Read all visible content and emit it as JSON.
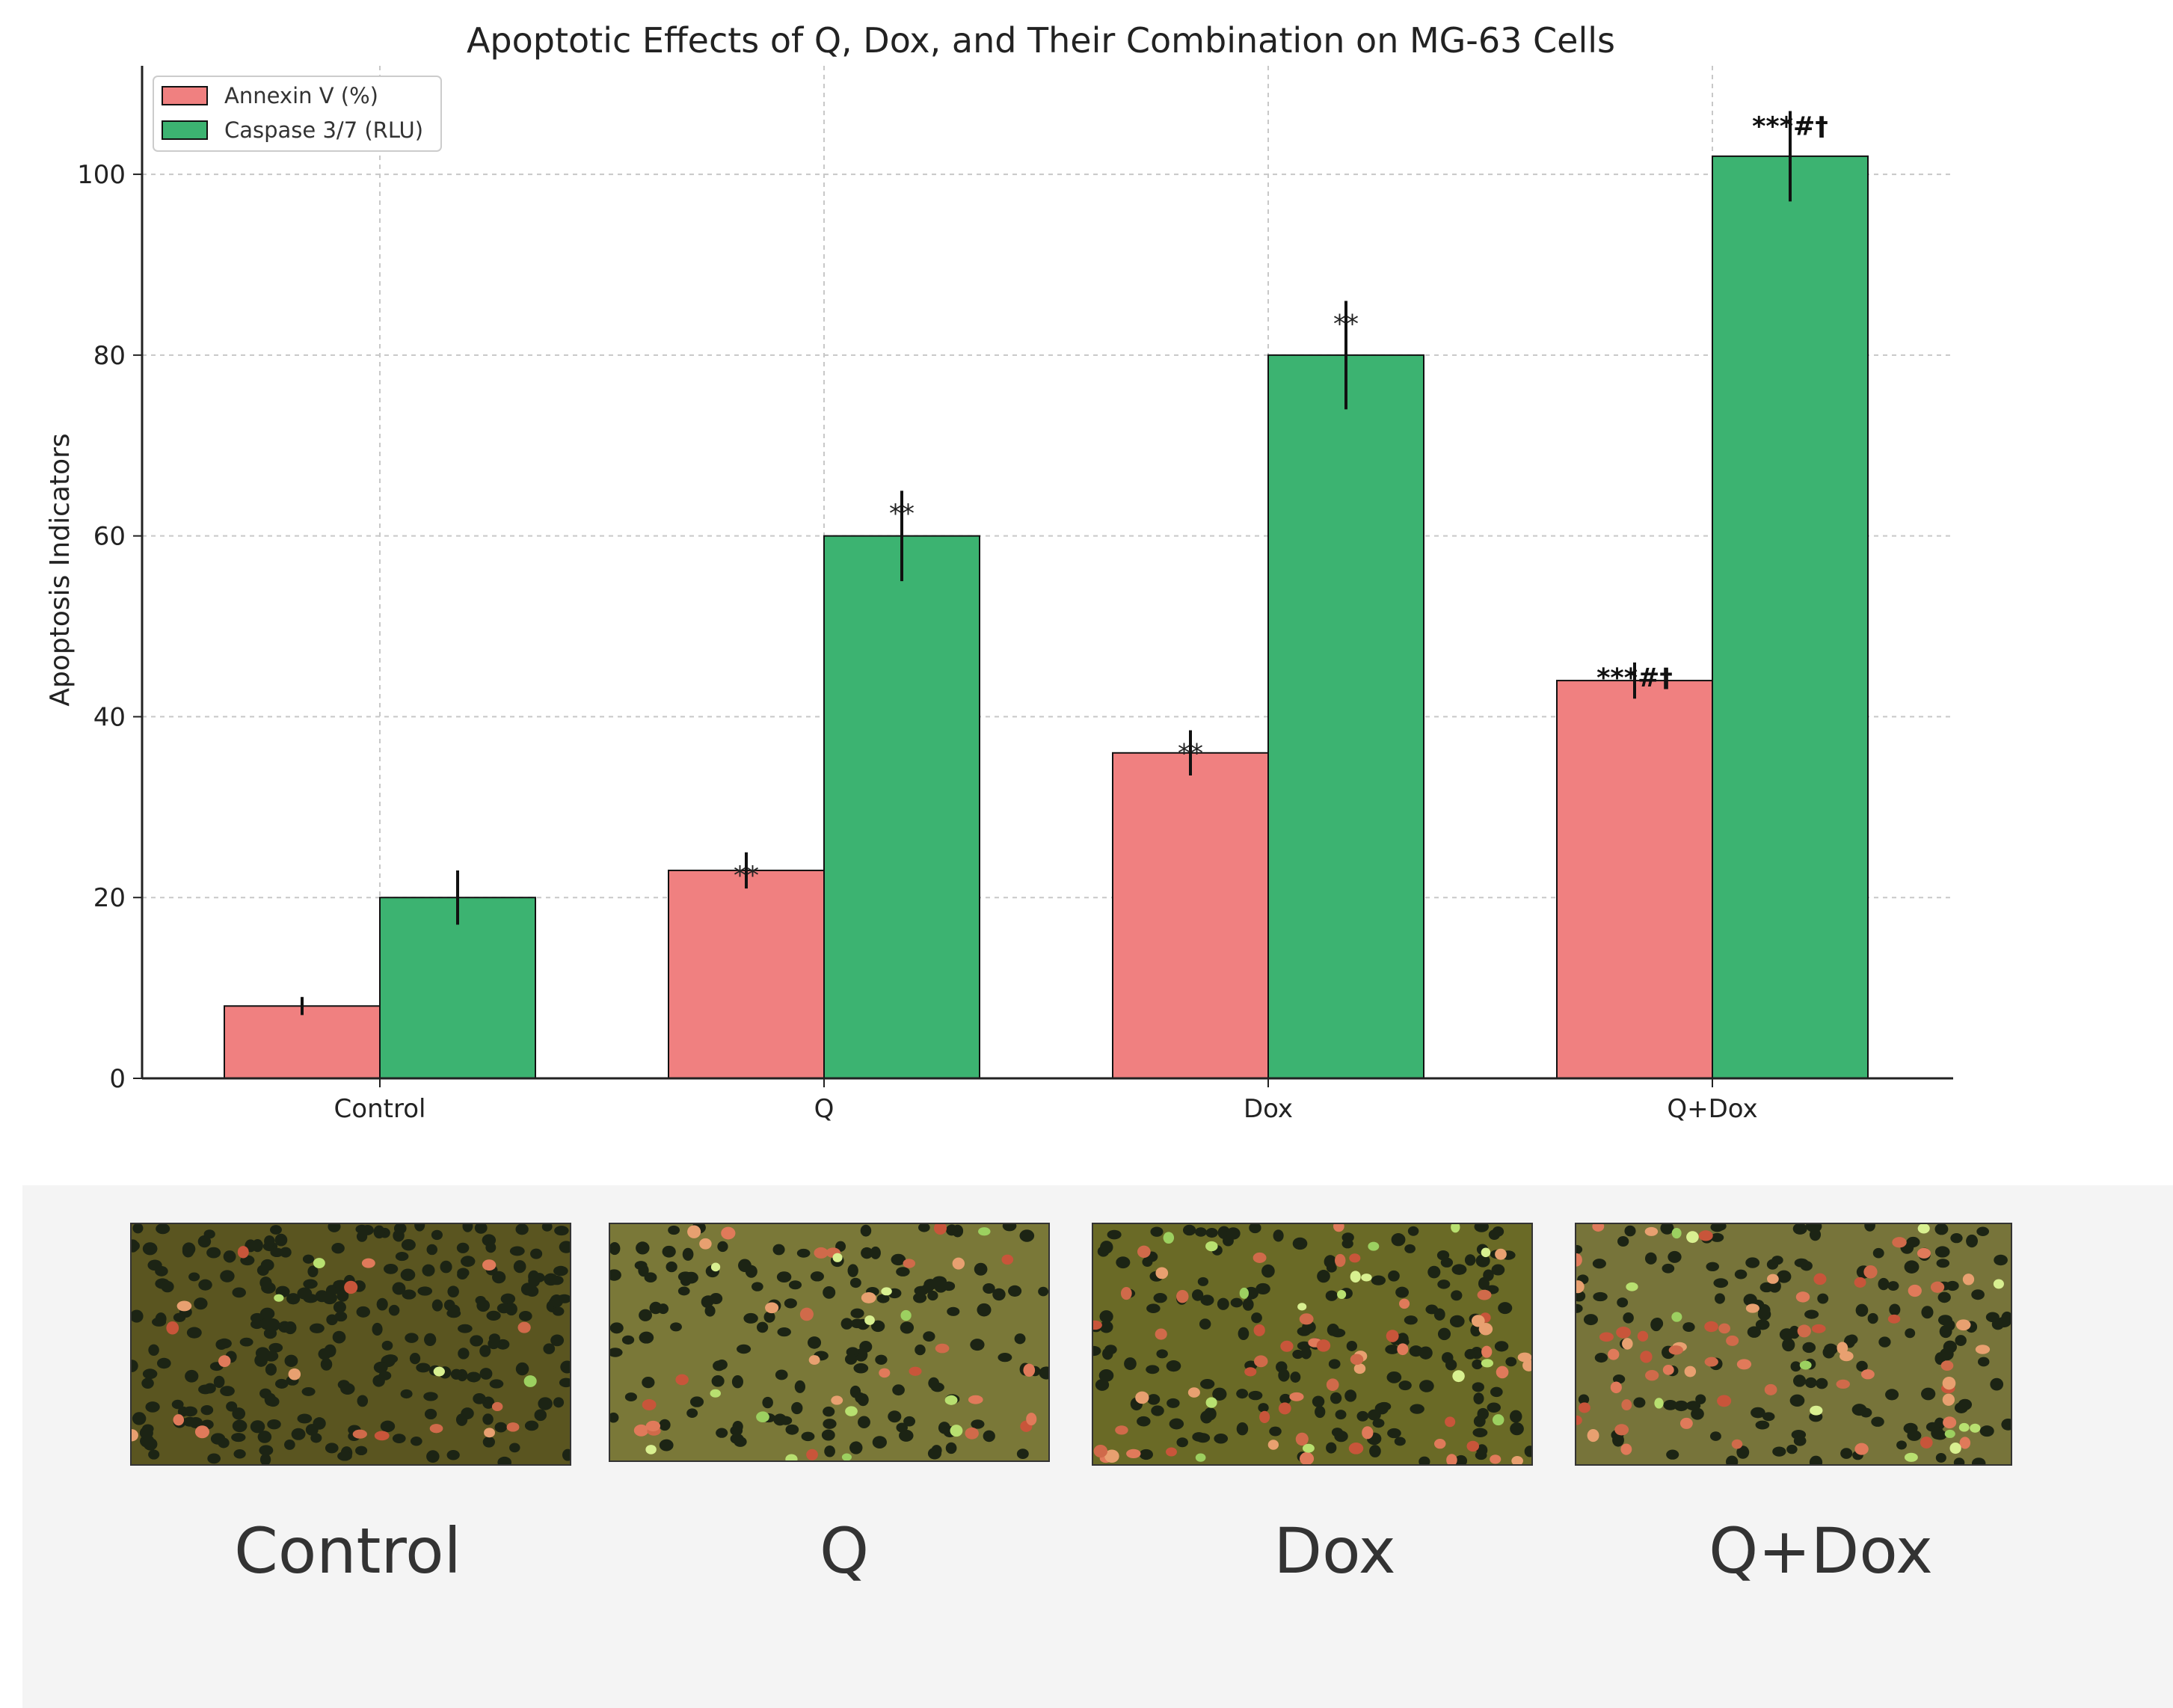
{
  "chart_data": {
    "type": "bar",
    "title": "Apoptotic Effects of Q, Dox, and Their Combination on MG-63 Cells",
    "xlabel": "",
    "ylabel": "Apoptosis Indicators",
    "ylim": [
      0,
      112
    ],
    "yticks": [
      0,
      20,
      40,
      60,
      80,
      100
    ],
    "grid": true,
    "legend_position": "top-left",
    "categories": [
      "Control",
      "Q",
      "Dox",
      "Q+Dox"
    ],
    "series": [
      {
        "name": "Annexin V (%)",
        "color": "#f08080",
        "values": [
          8,
          23,
          36,
          44
        ],
        "errors": [
          1,
          2,
          2.5,
          2
        ],
        "annotations": [
          "",
          "**",
          "**",
          "***#†"
        ]
      },
      {
        "name": "Caspase 3/7 (RLU)",
        "color": "#3cb371",
        "values": [
          20,
          60,
          80,
          102
        ],
        "errors": [
          3,
          5,
          6,
          5
        ],
        "annotations": [
          "",
          "**",
          "**",
          "***#†"
        ]
      }
    ]
  },
  "microscopy": {
    "panels": [
      {
        "label": "Control"
      },
      {
        "label": "Q"
      },
      {
        "label": "Dox"
      },
      {
        "label": "Q+Dox"
      }
    ]
  }
}
